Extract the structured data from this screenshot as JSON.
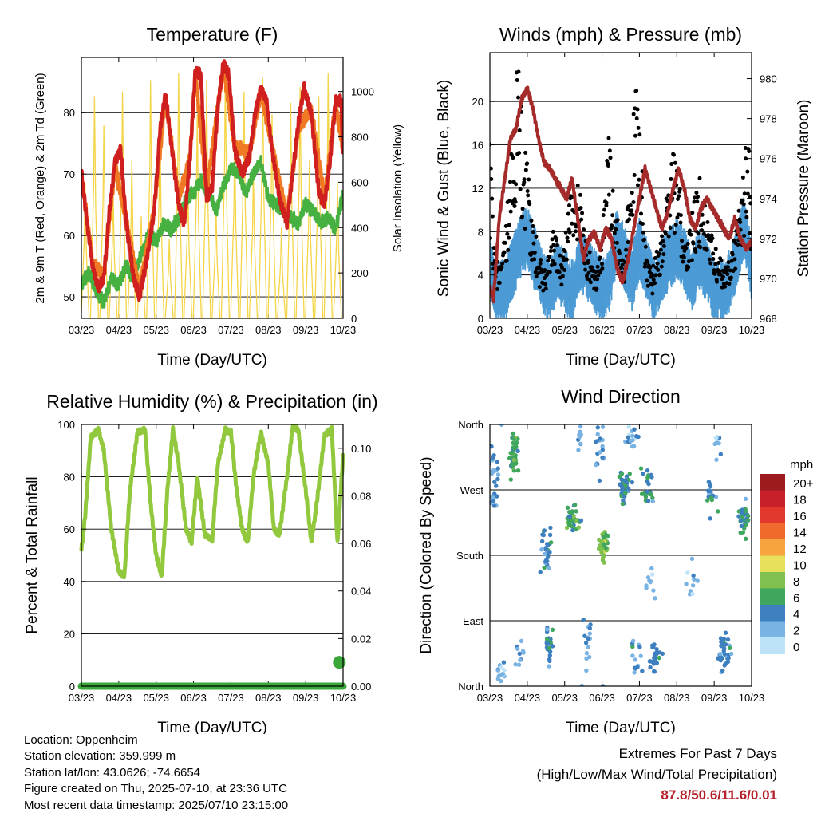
{
  "colors": {
    "temp_2m": "#cf1f1f",
    "temp_9m": "#f07a23",
    "dewpoint": "#46b040",
    "solar": "#f5d547",
    "gust": "#000000",
    "wind": "#4d9bd5",
    "pressure": "#a52a2a",
    "rh": "#92c83e",
    "precip": "#3aa73a"
  },
  "chart_data": [
    {
      "id": "temperature",
      "type": "line",
      "title": "Temperature (F)",
      "xlabel": "Time (Day/UTC)",
      "ylabel": "2m & 9m T (Red, Orange) & 2m Td (Green)",
      "y2label": "Solar Insolation (Yellow)",
      "x_ticks": [
        "03/23",
        "04/23",
        "05/23",
        "06/23",
        "07/23",
        "08/23",
        "09/23",
        "10/23"
      ],
      "ylim": [
        46.5,
        89
      ],
      "y_ticks": [
        50,
        60,
        70,
        80
      ],
      "y2lim": [
        0,
        1150
      ],
      "y2_ticks": [
        0,
        200,
        400,
        600,
        800,
        1000
      ],
      "grid": true,
      "series": [
        {
          "name": "2m T",
          "color_key": "temp_2m",
          "x": [
            0,
            0.15,
            0.3,
            0.45,
            0.6,
            0.75,
            0.9,
            1.05,
            1.2,
            1.4,
            1.55,
            1.75,
            1.95,
            2.1,
            2.25,
            2.4,
            2.6,
            2.75,
            2.9,
            3.05,
            3.2,
            3.35,
            3.5,
            3.65,
            3.8,
            3.95,
            4.1,
            4.3,
            4.5,
            4.65,
            4.8,
            4.95,
            5.1,
            5.3,
            5.5,
            5.65,
            5.8,
            5.95,
            6.15,
            6.35,
            6.5,
            6.65,
            6.8,
            6.95,
            7.0
          ],
          "y": [
            70.5,
            62,
            55,
            51.5,
            53,
            64,
            72,
            74,
            62,
            53,
            50,
            56,
            64,
            77,
            83,
            75,
            65,
            62,
            72,
            87,
            86,
            66,
            68,
            81,
            88,
            86,
            74,
            70,
            73,
            80,
            84,
            82,
            74,
            66,
            62,
            70,
            78,
            84,
            80,
            67,
            65,
            72,
            82,
            82,
            73
          ]
        },
        {
          "name": "9m T",
          "color_key": "temp_9m",
          "x": [
            0,
            0.3,
            0.6,
            0.9,
            1.2,
            1.55,
            1.95,
            2.25,
            2.6,
            2.9,
            3.05,
            3.35,
            3.65,
            3.8,
            4.1,
            4.5,
            4.8,
            5.1,
            5.5,
            5.8,
            6.15,
            6.5,
            6.8,
            7.0
          ],
          "y": [
            70,
            55.5,
            53.5,
            71.5,
            62.5,
            51,
            64.5,
            82.5,
            66,
            72.5,
            86.5,
            67,
            81,
            87.5,
            74.5,
            73.5,
            83.5,
            74.5,
            63,
            77.5,
            80.5,
            66,
            81.5,
            74
          ]
        },
        {
          "name": "2m Td",
          "color_key": "dewpoint",
          "x": [
            0,
            0.2,
            0.4,
            0.6,
            0.8,
            1.0,
            1.2,
            1.4,
            1.6,
            1.8,
            2.0,
            2.2,
            2.4,
            2.6,
            2.8,
            3.0,
            3.2,
            3.4,
            3.6,
            3.8,
            4.0,
            4.2,
            4.4,
            4.6,
            4.8,
            5.0,
            5.2,
            5.4,
            5.6,
            5.8,
            6.0,
            6.2,
            6.4,
            6.6,
            6.8,
            7.0
          ],
          "y": [
            52,
            54,
            51,
            49,
            53,
            52,
            55,
            53,
            57,
            60,
            59,
            62,
            61,
            63,
            66,
            67,
            69,
            67,
            64,
            68,
            71,
            70,
            67,
            70,
            72,
            66,
            65,
            64,
            63,
            62,
            65,
            64,
            62,
            63,
            61,
            67
          ]
        },
        {
          "name": "Solar Insolation",
          "color_key": "solar",
          "axis": "y2",
          "x": [
            0.1,
            0.35,
            0.6,
            0.85,
            1.1,
            1.35,
            1.6,
            1.85,
            2.1,
            2.35,
            2.6,
            2.85,
            3.1,
            3.35,
            3.6,
            3.85,
            4.1,
            4.35,
            4.6,
            4.85,
            5.1,
            5.35,
            5.6,
            5.85,
            6.1,
            6.35,
            6.6,
            6.85
          ],
          "y": [
            600,
            980,
            850,
            550,
            1000,
            700,
            450,
            1050,
            900,
            350,
            1080,
            600,
            900,
            1050,
            500,
            1100,
            800,
            1000,
            650,
            1060,
            900,
            400,
            950,
            1020,
            700,
            980,
            1080,
            600
          ]
        }
      ]
    },
    {
      "id": "winds",
      "type": "line",
      "title": "Winds (mph) & Pressure (mb)",
      "xlabel": "Time (Day/UTC)",
      "ylabel": "Sonic Wind & Gust (Blue, Black)",
      "y2label": "Station Pressure (Maroon)",
      "x_ticks": [
        "03/23",
        "04/23",
        "05/23",
        "06/23",
        "07/23",
        "08/23",
        "09/23",
        "10/23"
      ],
      "ylim": [
        0,
        24.5
      ],
      "y_ticks": [
        0,
        4,
        8,
        12,
        16,
        20
      ],
      "y2lim": [
        968,
        981.3
      ],
      "y2_ticks": [
        968,
        970,
        972,
        974,
        976,
        978,
        980
      ],
      "grid": true,
      "series": [
        {
          "name": "Gust",
          "color_key": "gust",
          "style": "dots",
          "x": [
            0,
            0.15,
            0.3,
            0.45,
            0.6,
            0.75,
            0.9,
            1.05,
            1.2,
            1.35,
            1.5,
            1.65,
            1.8,
            1.95,
            2.1,
            2.25,
            2.4,
            2.55,
            2.7,
            2.85,
            3.0,
            3.15,
            3.3,
            3.45,
            3.6,
            3.75,
            3.9,
            4.05,
            4.2,
            4.35,
            4.5,
            4.65,
            4.8,
            4.95,
            5.1,
            5.25,
            5.4,
            5.55,
            5.7,
            5.85,
            6.0,
            6.15,
            6.3,
            6.45,
            6.6,
            6.75,
            6.9,
            7.0
          ],
          "y": [
            14,
            5,
            4,
            8,
            16,
            21,
            15,
            11,
            7,
            5,
            4,
            8,
            6,
            5,
            9,
            11,
            13,
            7,
            5,
            4,
            6,
            16,
            11,
            7,
            6,
            12,
            19,
            14,
            5,
            4,
            6,
            9,
            14,
            13,
            10,
            6,
            9,
            12,
            11,
            8,
            6,
            5,
            4,
            5,
            8,
            12,
            16,
            10
          ]
        },
        {
          "name": "Sonic Wind",
          "color_key": "wind",
          "style": "band",
          "x": [
            0,
            0.2,
            0.4,
            0.6,
            0.8,
            1.0,
            1.2,
            1.4,
            1.6,
            1.8,
            2.0,
            2.2,
            2.4,
            2.6,
            2.8,
            3.0,
            3.2,
            3.4,
            3.6,
            3.8,
            4.0,
            4.2,
            4.4,
            4.6,
            4.8,
            5.0,
            5.2,
            5.4,
            5.6,
            5.8,
            6.0,
            6.2,
            6.4,
            6.6,
            6.8,
            7.0
          ],
          "y": [
            5,
            3,
            3,
            5,
            7,
            8,
            6,
            4,
            3,
            5,
            4,
            3,
            6,
            5,
            4,
            3,
            4,
            8,
            6,
            4,
            7,
            5,
            3,
            5,
            6,
            7,
            6,
            4,
            6,
            5,
            3,
            3,
            4,
            6,
            9,
            5
          ]
        },
        {
          "name": "Station Pressure",
          "color_key": "pressure",
          "axis": "y2",
          "x": [
            0,
            0.1,
            0.25,
            0.4,
            0.55,
            0.7,
            0.85,
            1.0,
            1.15,
            1.3,
            1.45,
            1.6,
            1.75,
            1.9,
            2.05,
            2.2,
            2.35,
            2.5,
            2.65,
            2.8,
            2.95,
            3.1,
            3.25,
            3.4,
            3.55,
            3.7,
            3.85,
            4.0,
            4.15,
            4.3,
            4.45,
            4.6,
            4.75,
            4.9,
            5.05,
            5.2,
            5.35,
            5.5,
            5.65,
            5.8,
            5.95,
            6.1,
            6.25,
            6.4,
            6.55,
            6.7,
            6.85,
            7.0
          ],
          "y": [
            969.5,
            969,
            973,
            975,
            977,
            977.5,
            979,
            979.5,
            978.5,
            977,
            975.8,
            975.5,
            975,
            974.5,
            974,
            975,
            973,
            971,
            972,
            972.3,
            971.5,
            972.5,
            972,
            970.5,
            969.8,
            971,
            972.5,
            974,
            975.5,
            974.5,
            973.5,
            972.5,
            973.2,
            974.5,
            975.5,
            974.5,
            973,
            972.5,
            973.5,
            974,
            973.5,
            973,
            972.5,
            972,
            973,
            972,
            971.5,
            971.8
          ]
        }
      ]
    },
    {
      "id": "humidity",
      "type": "line",
      "title": "Relative Humidity (%) & Precipitation (in)",
      "xlabel": "Time (Day/UTC)",
      "ylabel": "Percent & Total Rainfall",
      "x_ticks": [
        "03/23",
        "04/23",
        "05/23",
        "06/23",
        "07/23",
        "08/23",
        "09/23",
        "10/23"
      ],
      "ylim": [
        0,
        100
      ],
      "y_ticks": [
        0,
        20,
        40,
        60,
        80,
        100
      ],
      "y2lim": [
        0,
        0.11
      ],
      "y2_ticks": [
        "0.00",
        "0.02",
        "0.04",
        "0.06",
        "0.08",
        "0.10"
      ],
      "grid": true,
      "series": [
        {
          "name": "RH",
          "color_key": "rh",
          "x": [
            0,
            0.1,
            0.25,
            0.45,
            0.6,
            0.8,
            1.0,
            1.15,
            1.3,
            1.5,
            1.7,
            1.85,
            2.0,
            2.15,
            2.3,
            2.45,
            2.6,
            2.8,
            2.95,
            3.1,
            3.3,
            3.5,
            3.65,
            3.85,
            4.0,
            4.15,
            4.3,
            4.45,
            4.6,
            4.8,
            5.0,
            5.15,
            5.3,
            5.5,
            5.65,
            5.8,
            6.0,
            6.15,
            6.3,
            6.5,
            6.7,
            6.85,
            7.0
          ],
          "y": [
            52,
            65,
            95,
            98,
            90,
            60,
            44,
            42,
            75,
            97,
            98,
            70,
            50,
            42,
            75,
            98,
            85,
            60,
            55,
            80,
            58,
            56,
            85,
            98,
            97,
            75,
            60,
            55,
            80,
            97,
            85,
            60,
            58,
            80,
            99,
            98,
            75,
            55,
            70,
            96,
            98,
            55,
            88
          ]
        },
        {
          "name": "Total Rainfall",
          "color_key": "precip",
          "x": [
            0,
            1,
            2,
            3,
            4,
            5,
            6,
            6.9
          ],
          "y": [
            0,
            0,
            0,
            0,
            0,
            0,
            0,
            0.01
          ]
        }
      ]
    },
    {
      "id": "direction",
      "type": "scatter",
      "title": "Wind Direction",
      "xlabel": "Time (Day/UTC)",
      "ylabel": "Direction (Colored By Speed)",
      "x_ticks": [
        "03/23",
        "04/23",
        "05/23",
        "06/23",
        "07/23",
        "08/23",
        "09/23",
        "10/23"
      ],
      "y_tick_labels": [
        "North",
        "East",
        "South",
        "West",
        "North"
      ],
      "ylim": [
        0,
        360
      ],
      "legend": {
        "title": "mph",
        "placement": "right",
        "labels": [
          "20+",
          "18",
          "16",
          "14",
          "12",
          "10",
          "8",
          "6",
          "4",
          "2",
          "0"
        ],
        "colors": [
          "#9b1b1e",
          "#c8202b",
          "#e2372d",
          "#f06a2e",
          "#f7a440",
          "#e6e05b",
          "#7fc04e",
          "#3fa65d",
          "#3d7fbf",
          "#79b3e3",
          "#bde3f8"
        ]
      },
      "clusters": [
        {
          "x": 0.1,
          "y": 290,
          "n": 30,
          "sx": 0.12,
          "sy": 40,
          "speed": 3
        },
        {
          "x": 0.65,
          "y": 320,
          "n": 45,
          "sx": 0.1,
          "sy": 25,
          "speed": 6
        },
        {
          "x": 0.3,
          "y": 20,
          "n": 15,
          "sx": 0.1,
          "sy": 15,
          "speed": 2
        },
        {
          "x": 0.8,
          "y": 45,
          "n": 10,
          "sx": 0.1,
          "sy": 20,
          "speed": 3
        },
        {
          "x": 1.5,
          "y": 190,
          "n": 30,
          "sx": 0.15,
          "sy": 30,
          "speed": 4
        },
        {
          "x": 1.55,
          "y": 60,
          "n": 25,
          "sx": 0.1,
          "sy": 30,
          "speed": 4
        },
        {
          "x": 2.2,
          "y": 230,
          "n": 40,
          "sx": 0.15,
          "sy": 15,
          "speed": 6
        },
        {
          "x": 2.4,
          "y": 340,
          "n": 10,
          "sx": 0.08,
          "sy": 20,
          "speed": 2
        },
        {
          "x": 2.6,
          "y": 50,
          "n": 15,
          "sx": 0.1,
          "sy": 30,
          "speed": 3
        },
        {
          "x": 3.05,
          "y": 195,
          "n": 45,
          "sx": 0.1,
          "sy": 20,
          "speed": 8
        },
        {
          "x": 2.95,
          "y": 330,
          "n": 20,
          "sx": 0.12,
          "sy": 30,
          "speed": 3
        },
        {
          "x": 3.6,
          "y": 275,
          "n": 40,
          "sx": 0.15,
          "sy": 20,
          "speed": 5
        },
        {
          "x": 3.8,
          "y": 340,
          "n": 15,
          "sx": 0.15,
          "sy": 15,
          "speed": 2
        },
        {
          "x": 3.9,
          "y": 30,
          "n": 15,
          "sx": 0.12,
          "sy": 25,
          "speed": 3
        },
        {
          "x": 4.2,
          "y": 270,
          "n": 25,
          "sx": 0.12,
          "sy": 30,
          "speed": 5
        },
        {
          "x": 4.3,
          "y": 150,
          "n": 10,
          "sx": 0.1,
          "sy": 30,
          "speed": 2
        },
        {
          "x": 4.4,
          "y": 40,
          "n": 25,
          "sx": 0.12,
          "sy": 20,
          "speed": 4
        },
        {
          "x": 5.4,
          "y": 140,
          "n": 10,
          "sx": 0.15,
          "sy": 30,
          "speed": 2
        },
        {
          "x": 5.9,
          "y": 260,
          "n": 20,
          "sx": 0.12,
          "sy": 25,
          "speed": 4
        },
        {
          "x": 6.3,
          "y": 50,
          "n": 35,
          "sx": 0.15,
          "sy": 25,
          "speed": 4
        },
        {
          "x": 6.8,
          "y": 230,
          "n": 30,
          "sx": 0.12,
          "sy": 20,
          "speed": 5
        },
        {
          "x": 6.1,
          "y": 330,
          "n": 10,
          "sx": 0.1,
          "sy": 15,
          "speed": 2
        }
      ]
    }
  ],
  "station_info": {
    "location": "Location: Oppenheim",
    "elevation": "Station elevation: 359.999 m",
    "latlon": "Station lat/lon: 43.0626; -74.6654",
    "created": "Figure created on Thu, 2025-07-10, at 23:36 UTC",
    "recent": "Most recent data timestamp: 2025/07/10 23:15:00"
  },
  "extremes": {
    "heading": "Extremes For Past 7 Days",
    "subheading": "(High/Low/Max Wind/Total Precipitation)",
    "values": "87.8/50.6/11.6/0.01"
  }
}
